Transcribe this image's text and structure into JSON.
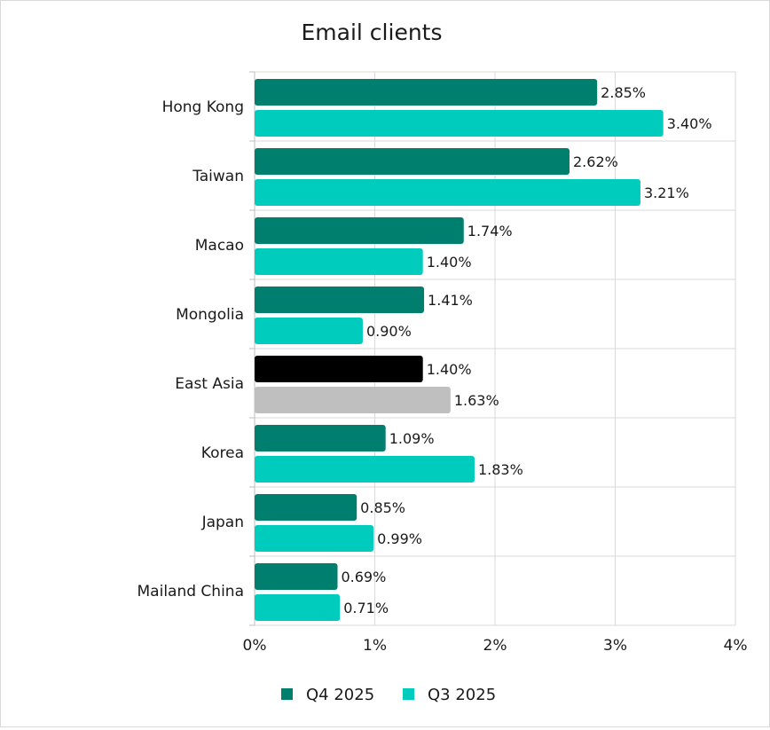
{
  "chart_data": {
    "type": "bar",
    "orientation": "horizontal",
    "title": "Email clients",
    "xlabel": "",
    "ylabel": "",
    "xlim": [
      0,
      4
    ],
    "x_ticks": [
      "0%",
      "1%",
      "2%",
      "3%",
      "4%"
    ],
    "grid": true,
    "legend_position": "bottom",
    "categories": [
      "Hong Kong",
      "Taiwan",
      "Macao",
      "Mongolia",
      "East Asia",
      "Korea",
      "Japan",
      "Mailand China"
    ],
    "series": [
      {
        "name": "Q4 2025",
        "color": "#007f6e",
        "values": [
          2.85,
          2.62,
          1.74,
          1.41,
          1.4,
          1.09,
          0.85,
          0.69
        ],
        "labels": [
          "2.85%",
          "2.62%",
          "1.74%",
          "1.41%",
          "1.40%",
          "1.09%",
          "0.85%",
          "0.69%"
        ]
      },
      {
        "name": "Q3 2025",
        "color": "#00ccbe",
        "values": [
          3.4,
          3.21,
          1.4,
          0.9,
          1.63,
          1.83,
          0.99,
          0.71
        ],
        "labels": [
          "3.40%",
          "3.21%",
          "1.40%",
          "0.90%",
          "1.63%",
          "1.83%",
          "0.99%",
          "0.71%"
        ]
      }
    ],
    "highlight": {
      "category": "East Asia",
      "colors": [
        "#000000",
        "#bfbfbf"
      ]
    }
  }
}
